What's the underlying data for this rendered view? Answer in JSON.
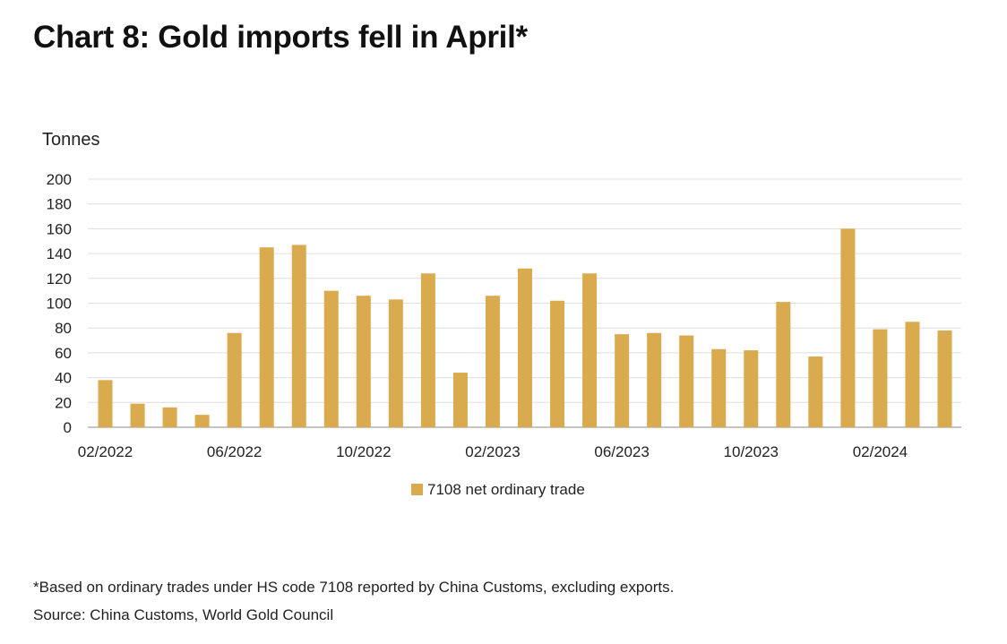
{
  "title": "Chart 8: Gold imports fell in April*",
  "footnote": "*Based on ordinary trades under HS code 7108 reported by China Customs, excluding exports.",
  "source": "Source: China Customs, World Gold Council",
  "colors": {
    "bar": "#DAAA4E",
    "grid": "#dddddd",
    "axis": "#888888"
  },
  "chart_data": {
    "type": "bar",
    "ylabel": "Tonnes",
    "ylim": [
      0,
      200
    ],
    "yticks": [
      0,
      20,
      40,
      60,
      80,
      100,
      120,
      140,
      160,
      180,
      200
    ],
    "grid": true,
    "legend_position": "bottom",
    "categories": [
      "02/2022",
      "03/2022",
      "04/2022",
      "05/2022",
      "06/2022",
      "07/2022",
      "08/2022",
      "09/2022",
      "10/2022",
      "11/2022",
      "12/2022",
      "01/2023",
      "02/2023",
      "03/2023",
      "04/2023",
      "05/2023",
      "06/2023",
      "07/2023",
      "08/2023",
      "09/2023",
      "10/2023",
      "11/2023",
      "12/2023",
      "01/2024",
      "02/2024",
      "03/2024",
      "04/2024"
    ],
    "xtick_labels": [
      "02/2022",
      "06/2022",
      "10/2022",
      "02/2023",
      "06/2023",
      "10/2023",
      "02/2024"
    ],
    "series": [
      {
        "name": "7108 net ordinary trade",
        "values": [
          38,
          19,
          16,
          10,
          76,
          145,
          147,
          110,
          106,
          103,
          124,
          44,
          106,
          128,
          102,
          124,
          75,
          76,
          74,
          63,
          62,
          101,
          57,
          160,
          79,
          85,
          78
        ]
      }
    ]
  }
}
